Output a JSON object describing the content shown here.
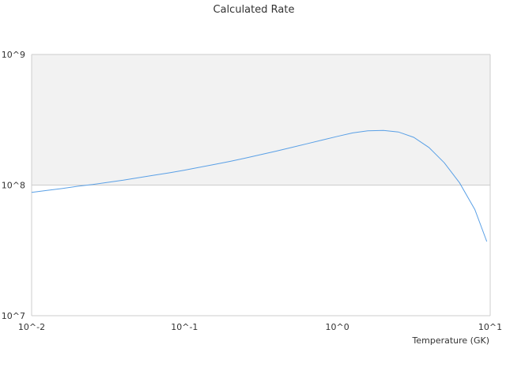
{
  "chart_data": {
    "type": "line",
    "title": "Calculated Rate",
    "xlabel": "Temperature (GK)",
    "ylabel": "",
    "x_scale": "log",
    "y_scale": "log",
    "xlim": [
      0.01,
      10
    ],
    "ylim": [
      10000000,
      1000000000
    ],
    "x_tick_labels": [
      "10^-2",
      "10^-1",
      "10^0",
      "10^1"
    ],
    "y_tick_labels": [
      "10^9",
      "10^8",
      "10^7"
    ],
    "grid": true,
    "band": {
      "from": 100000000,
      "to": 1000000000,
      "color": "#f2f2f2"
    },
    "colors": {
      "line": "#5aa0e6",
      "band": "#f2f2f2",
      "axis": "#cccccc",
      "text": "#333333"
    },
    "series": [
      {
        "x": [
          0.01,
          0.0126,
          0.0158,
          0.02,
          0.0251,
          0.0316,
          0.0398,
          0.0501,
          0.0631,
          0.0794,
          0.1,
          0.126,
          0.158,
          0.2,
          0.251,
          0.316,
          0.398,
          0.501,
          0.631,
          0.794,
          1.0,
          1.26,
          1.58,
          2.0,
          2.51,
          3.16,
          3.98,
          5.01,
          6.31,
          7.94,
          9.5
        ],
        "y": [
          88000000,
          91000000,
          94000000,
          98000000,
          101000000,
          105000000,
          109000000,
          114000000,
          119000000,
          124000000,
          130000000,
          137000000,
          144000000,
          152000000,
          161000000,
          171000000,
          182000000,
          194000000,
          207000000,
          221000000,
          236000000,
          251000000,
          260000000,
          262000000,
          255000000,
          232000000,
          194000000,
          148000000,
          104000000,
          65000000,
          37000000
        ]
      }
    ]
  }
}
